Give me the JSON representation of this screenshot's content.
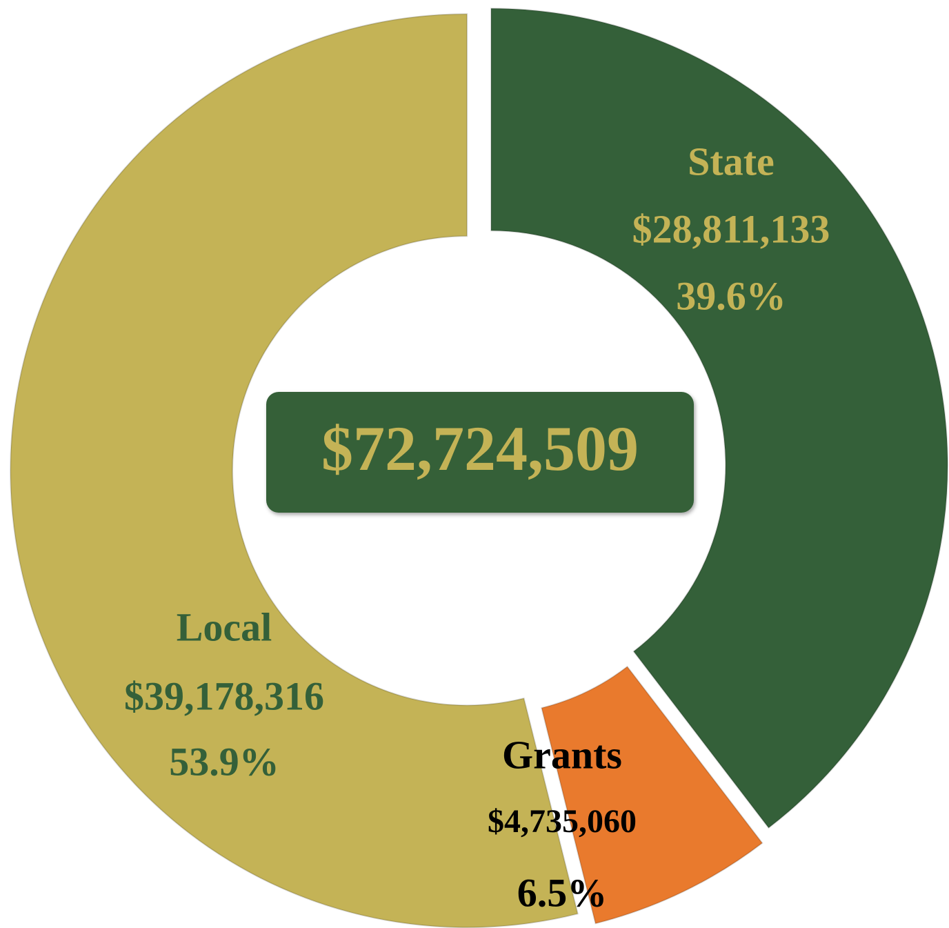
{
  "chart_data": {
    "type": "donut",
    "categories": [
      "State",
      "Grants",
      "Local"
    ],
    "values": [
      39.6,
      6.5,
      53.9
    ],
    "value_labels": [
      "39.6%",
      "6.5%",
      "53.9%"
    ],
    "amounts": [
      28811133,
      4735060,
      39178316
    ],
    "amount_labels": [
      "$28,811,133",
      "$4,735,060",
      "$39,178,316"
    ],
    "colors": [
      "#346039",
      "#e97a2d",
      "#c4b356"
    ],
    "label_colors": [
      "#c4b356",
      "#000000",
      "#346039"
    ],
    "total": 72724509,
    "total_label": "$72,724,509"
  }
}
